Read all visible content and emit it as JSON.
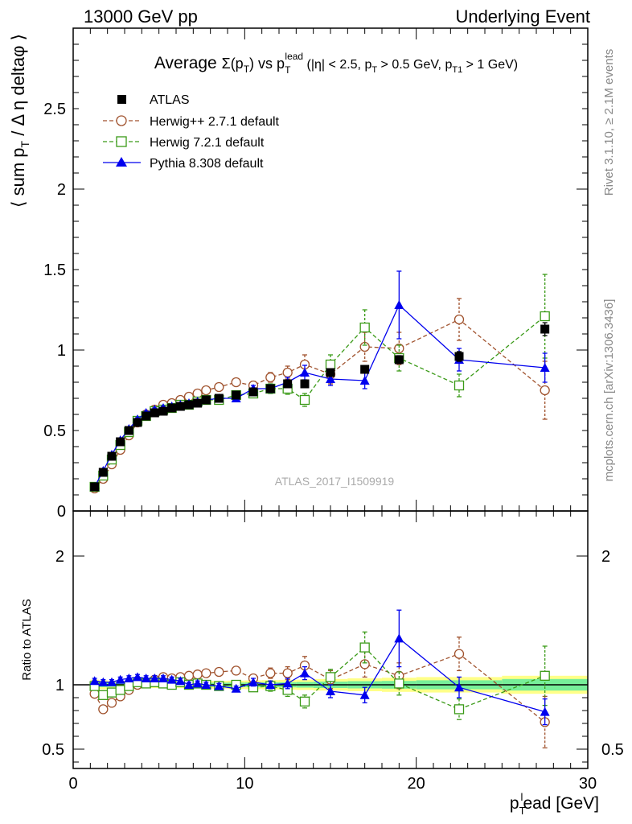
{
  "header": {
    "left": "13000 GeV pp",
    "right": "Underlying Event"
  },
  "side": {
    "rivet": "Rivet 3.1.10, ≥ 2.1M events",
    "mcplots": "mcplots.cern.ch [arXiv:1306.3436]"
  },
  "watermark": "ATLAS_2017_I1509919",
  "colors": {
    "atlas": "#000000",
    "herwigpp": "#a0522d",
    "herwig7": "#3a9a17",
    "pythia": "#0000ee",
    "band_yellow": "#ffff88",
    "band_green": "#77ee99"
  },
  "chart_data": [
    {
      "type": "scatter",
      "panel": "main",
      "title": {
        "lead": "Average ",
        "sigma": "Σ(p",
        "t": "T",
        "close": ") vs p",
        "t2": "T",
        "lead_sup": "lead",
        "cuts_a": " (|η| < 2.5, p",
        "t3": "T",
        "cuts_b": " > 0.5 GeV, p",
        "t4": "T1",
        "cuts_c": " > 1 GeV)"
      },
      "ylabel": {
        "a": "⟨ sum p",
        "sub": "T",
        "b": " / Δ η deltaφ ⟩"
      },
      "xlim": [
        0,
        30
      ],
      "ylim": [
        0,
        3
      ],
      "x_ticks": [
        0,
        10,
        20,
        30
      ],
      "y_ticks": [
        0,
        0.5,
        1,
        1.5,
        2,
        2.5
      ],
      "y_tick_labels": [
        "0",
        "0.5",
        "1",
        "1.5",
        "2",
        "2.5"
      ],
      "legend_position": "top-left",
      "series": [
        {
          "name": "ATLAS",
          "marker": "square-filled",
          "line": "none",
          "x": [
            1.25,
            1.75,
            2.25,
            2.75,
            3.25,
            3.75,
            4.25,
            4.75,
            5.25,
            5.75,
            6.25,
            6.75,
            7.25,
            7.75,
            8.5,
            9.5,
            10.5,
            11.5,
            12.5,
            13.5,
            15,
            17,
            19,
            22.5,
            27.5
          ],
          "y": [
            0.15,
            0.24,
            0.34,
            0.43,
            0.5,
            0.55,
            0.59,
            0.61,
            0.62,
            0.64,
            0.65,
            0.66,
            0.67,
            0.69,
            0.7,
            0.72,
            0.74,
            0.76,
            0.79,
            0.79,
            0.86,
            0.88,
            0.94,
            0.96,
            1.13
          ],
          "err": [
            0.003,
            0.004,
            0.005,
            0.006,
            0.006,
            0.007,
            0.007,
            0.007,
            0.007,
            0.008,
            0.008,
            0.008,
            0.008,
            0.008,
            0.008,
            0.01,
            0.01,
            0.012,
            0.012,
            0.015,
            0.015,
            0.02,
            0.025,
            0.03,
            0.04
          ]
        },
        {
          "name": "Herwig++ 2.7.1 default",
          "marker": "circle-open",
          "line": "dashed",
          "x": [
            1.25,
            1.75,
            2.25,
            2.75,
            3.25,
            3.75,
            4.25,
            4.75,
            5.25,
            5.75,
            6.25,
            6.75,
            7.25,
            7.75,
            8.5,
            9.5,
            10.5,
            11.5,
            12.5,
            13.5,
            15,
            17,
            19,
            22.5,
            27.5
          ],
          "y": [
            0.14,
            0.2,
            0.29,
            0.38,
            0.47,
            0.55,
            0.6,
            0.63,
            0.66,
            0.67,
            0.69,
            0.71,
            0.73,
            0.75,
            0.77,
            0.8,
            0.78,
            0.83,
            0.86,
            0.91,
            0.85,
            1.02,
            1.01,
            1.19,
            0.75
          ],
          "err": [
            0.004,
            0.005,
            0.006,
            0.008,
            0.008,
            0.009,
            0.01,
            0.01,
            0.011,
            0.012,
            0.012,
            0.013,
            0.014,
            0.015,
            0.015,
            0.02,
            0.025,
            0.03,
            0.04,
            0.06,
            0.06,
            0.09,
            0.1,
            0.13,
            0.18
          ]
        },
        {
          "name": "Herwig 7.2.1 default",
          "marker": "square-open",
          "line": "dashed",
          "x": [
            1.25,
            1.75,
            2.25,
            2.75,
            3.25,
            3.75,
            4.25,
            4.75,
            5.25,
            5.75,
            6.25,
            6.75,
            7.25,
            7.75,
            8.5,
            9.5,
            10.5,
            11.5,
            12.5,
            13.5,
            15,
            17,
            19,
            22.5,
            27.5
          ],
          "y": [
            0.15,
            0.22,
            0.32,
            0.41,
            0.49,
            0.56,
            0.59,
            0.62,
            0.63,
            0.64,
            0.66,
            0.66,
            0.68,
            0.69,
            0.69,
            0.72,
            0.73,
            0.76,
            0.76,
            0.69,
            0.91,
            1.14,
            0.95,
            0.78,
            1.21
          ],
          "err": [
            0.004,
            0.005,
            0.006,
            0.007,
            0.008,
            0.009,
            0.01,
            0.01,
            0.011,
            0.011,
            0.012,
            0.013,
            0.013,
            0.014,
            0.015,
            0.02,
            0.025,
            0.03,
            0.035,
            0.04,
            0.06,
            0.11,
            0.08,
            0.07,
            0.26
          ]
        },
        {
          "name": "Pythia 8.308 default",
          "marker": "triangle-filled",
          "line": "solid",
          "x": [
            1.25,
            1.75,
            2.25,
            2.75,
            3.25,
            3.75,
            4.25,
            4.75,
            5.25,
            5.75,
            6.25,
            6.75,
            7.25,
            7.75,
            8.5,
            9.5,
            10.5,
            11.5,
            12.5,
            13.5,
            15,
            17,
            19,
            22.5,
            27.5
          ],
          "y": [
            0.15,
            0.25,
            0.35,
            0.44,
            0.51,
            0.57,
            0.61,
            0.63,
            0.64,
            0.65,
            0.66,
            0.67,
            0.68,
            0.69,
            0.7,
            0.7,
            0.76,
            0.76,
            0.8,
            0.86,
            0.82,
            0.81,
            1.28,
            0.94,
            0.89
          ],
          "err": [
            0.004,
            0.005,
            0.006,
            0.007,
            0.008,
            0.009,
            0.009,
            0.01,
            0.01,
            0.011,
            0.011,
            0.012,
            0.013,
            0.013,
            0.014,
            0.018,
            0.02,
            0.025,
            0.03,
            0.045,
            0.04,
            0.05,
            0.21,
            0.07,
            0.09
          ]
        }
      ]
    },
    {
      "type": "scatter",
      "panel": "ratio",
      "ylabel": "Ratio to ATLAS",
      "xlabel": {
        "a": "p",
        "sub": "T",
        "sup": "l",
        "b": "ead [GeV]"
      },
      "xlim": [
        0,
        30
      ],
      "ylim": [
        0.35,
        2.35
      ],
      "x_ticks": [
        0,
        10,
        20,
        30
      ],
      "x_tick_labels": [
        "0",
        "10",
        "20",
        "30"
      ],
      "y_ticks": [
        0.5,
        1,
        2
      ],
      "y_tick_labels": [
        "0.5",
        "1",
        "2"
      ],
      "band": {
        "x_edges": [
          1,
          1.5,
          2,
          2.5,
          3,
          3.5,
          4,
          4.5,
          5,
          5.5,
          6,
          6.5,
          7,
          7.5,
          8,
          9,
          10,
          11,
          12,
          13,
          14,
          16,
          18,
          20,
          25,
          30
        ],
        "yellow": [
          0.04,
          0.035,
          0.03,
          0.028,
          0.026,
          0.025,
          0.025,
          0.025,
          0.025,
          0.025,
          0.026,
          0.026,
          0.027,
          0.028,
          0.03,
          0.032,
          0.034,
          0.036,
          0.038,
          0.04,
          0.045,
          0.05,
          0.055,
          0.06,
          0.07
        ],
        "green": [
          0.02,
          0.018,
          0.016,
          0.015,
          0.014,
          0.013,
          0.013,
          0.013,
          0.013,
          0.013,
          0.014,
          0.014,
          0.015,
          0.015,
          0.016,
          0.017,
          0.018,
          0.019,
          0.02,
          0.022,
          0.025,
          0.028,
          0.03,
          0.035,
          0.045
        ]
      },
      "series": [
        {
          "name": "Herwig++ 2.7.1 default",
          "x": [
            1.25,
            1.75,
            2.25,
            2.75,
            3.25,
            3.75,
            4.25,
            4.75,
            5.25,
            5.75,
            6.25,
            6.75,
            7.25,
            7.75,
            8.5,
            9.5,
            10.5,
            11.5,
            12.5,
            13.5,
            15,
            17,
            19,
            22.5,
            27.5
          ],
          "y": [
            0.93,
            0.81,
            0.86,
            0.91,
            0.96,
            1.0,
            1.02,
            1.04,
            1.06,
            1.05,
            1.06,
            1.07,
            1.08,
            1.09,
            1.1,
            1.11,
            1.05,
            1.09,
            1.09,
            1.15,
            1.04,
            1.16,
            1.07,
            1.24,
            0.71
          ],
          "err": [
            0.02,
            0.02,
            0.02,
            0.02,
            0.02,
            0.02,
            0.02,
            0.02,
            0.02,
            0.02,
            0.02,
            0.02,
            0.02,
            0.02,
            0.02,
            0.03,
            0.03,
            0.04,
            0.05,
            0.07,
            0.07,
            0.1,
            0.1,
            0.13,
            0.2
          ]
        },
        {
          "name": "Herwig 7.2.1 default",
          "x": [
            1.25,
            1.75,
            2.25,
            2.75,
            3.25,
            3.75,
            4.25,
            4.75,
            5.25,
            5.75,
            6.25,
            6.75,
            7.25,
            7.75,
            8.5,
            9.5,
            10.5,
            11.5,
            12.5,
            13.5,
            15,
            17,
            19,
            22.5,
            27.5
          ],
          "y": [
            0.99,
            0.92,
            0.94,
            0.96,
            0.99,
            1.02,
            1.01,
            1.02,
            1.01,
            1.0,
            1.02,
            1.0,
            1.01,
            1.0,
            0.99,
            1.0,
            0.98,
            0.99,
            0.96,
            0.87,
            1.06,
            1.29,
            1.01,
            0.81,
            1.07
          ],
          "err": [
            0.02,
            0.02,
            0.02,
            0.02,
            0.02,
            0.02,
            0.02,
            0.02,
            0.02,
            0.02,
            0.02,
            0.02,
            0.02,
            0.02,
            0.02,
            0.03,
            0.03,
            0.04,
            0.05,
            0.05,
            0.06,
            0.12,
            0.09,
            0.08,
            0.23
          ]
        },
        {
          "name": "Pythia 8.308 default",
          "x": [
            1.25,
            1.75,
            2.25,
            2.75,
            3.25,
            3.75,
            4.25,
            4.75,
            5.25,
            5.75,
            6.25,
            6.75,
            7.25,
            7.75,
            8.5,
            9.5,
            10.5,
            11.5,
            12.5,
            13.5,
            15,
            17,
            19,
            22.5,
            27.5
          ],
          "y": [
            1.03,
            1.02,
            1.02,
            1.04,
            1.05,
            1.06,
            1.05,
            1.05,
            1.05,
            1.04,
            1.03,
            1.0,
            1.01,
            1.0,
            0.99,
            0.97,
            1.02,
            1.0,
            1.01,
            1.09,
            0.95,
            0.92,
            1.36,
            0.98,
            0.79
          ],
          "err": [
            0.02,
            0.02,
            0.02,
            0.02,
            0.02,
            0.02,
            0.02,
            0.02,
            0.02,
            0.02,
            0.02,
            0.02,
            0.02,
            0.02,
            0.02,
            0.02,
            0.03,
            0.03,
            0.04,
            0.05,
            0.05,
            0.06,
            0.22,
            0.08,
            0.1
          ]
        }
      ]
    }
  ]
}
